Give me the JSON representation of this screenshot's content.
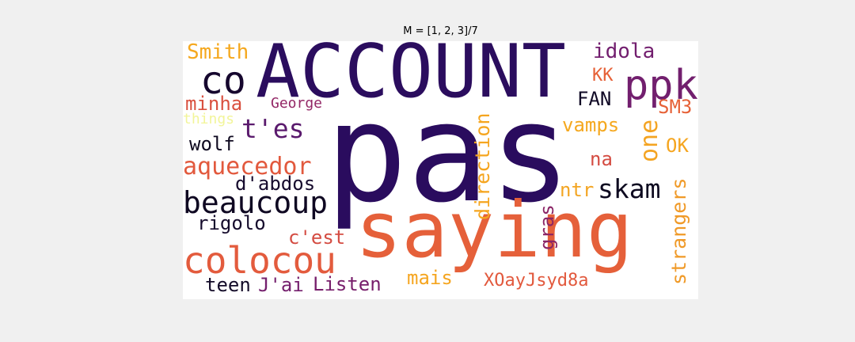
{
  "title": "M = [1, 2, 3]/7",
  "words": [
    {
      "text": "pas",
      "color": "#2a0c5e"
    },
    {
      "text": "ACCOUNT",
      "color": "#2b0d5e"
    },
    {
      "text": "saying",
      "color": "#e5603a"
    },
    {
      "text": "colocou",
      "color": "#e35b3d"
    },
    {
      "text": "ppk",
      "color": "#721f6e"
    },
    {
      "text": "co",
      "color": "#16072e"
    },
    {
      "text": "beaucoup",
      "color": "#0f0822"
    },
    {
      "text": "skam",
      "color": "#0e0a20"
    },
    {
      "text": "aquecedor",
      "color": "#e2593d"
    },
    {
      "text": "t'es",
      "color": "#5a1a6d"
    },
    {
      "text": "direction",
      "color": "#f5a51f"
    },
    {
      "text": "strangers",
      "color": "#f09a28"
    },
    {
      "text": "one",
      "color": "#f4a422"
    },
    {
      "text": "XOayJsyd8a",
      "color": "#e2593d"
    },
    {
      "text": "Listen",
      "color": "#771e6b"
    },
    {
      "text": "Smith",
      "color": "#f5a81f"
    },
    {
      "text": "idola",
      "color": "#721e6e"
    },
    {
      "text": "minha",
      "color": "#d9503f"
    },
    {
      "text": "wolf",
      "color": "#0f0a20"
    },
    {
      "text": "d'abdos",
      "color": "#160b2d"
    },
    {
      "text": "rigolo",
      "color": "#150b2c"
    },
    {
      "text": "c'est",
      "color": "#d44c42"
    },
    {
      "text": "teen",
      "color": "#130b28"
    },
    {
      "text": "J'ai",
      "color": "#741f6d"
    },
    {
      "text": "mais",
      "color": "#f5a51f"
    },
    {
      "text": "gras",
      "color": "#8b2566"
    },
    {
      "text": "ntr",
      "color": "#f3a523"
    },
    {
      "text": "vamps",
      "color": "#f5a81f"
    },
    {
      "text": "na",
      "color": "#d44c42"
    },
    {
      "text": "OK",
      "color": "#f5a51f"
    },
    {
      "text": "SM3",
      "color": "#e66137"
    },
    {
      "text": "FAN",
      "color": "#110a26"
    },
    {
      "text": "KK",
      "color": "#e66137"
    },
    {
      "text": "George",
      "color": "#932766"
    },
    {
      "text": "things",
      "color": "#f2f59a"
    }
  ]
}
